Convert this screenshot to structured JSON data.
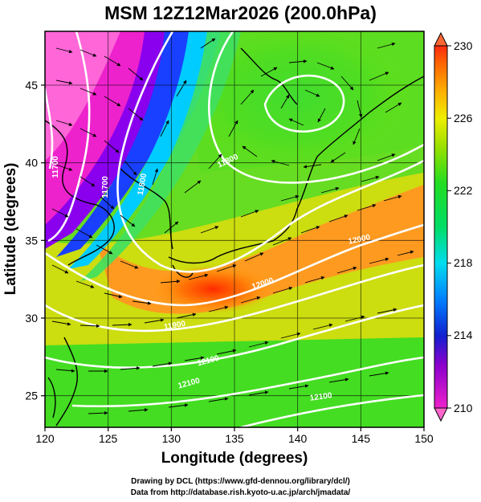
{
  "title": "MSM 12Z12Mar2026 (200.0hPa)",
  "map": {
    "lon_range": [
      120,
      150
    ],
    "lat_range": [
      22.5,
      48
    ],
    "x_ticks": [
      "120",
      "125",
      "130",
      "135",
      "140",
      "145",
      "150"
    ],
    "y_ticks": [
      "25",
      "30",
      "35",
      "40",
      "45"
    ],
    "xlabel": "Longitude (degrees)",
    "ylabel": "Latitude  (degrees)",
    "contour_labels": [
      "11700",
      "11700",
      "11800",
      "11800",
      "11900",
      "12000",
      "12000",
      "12100",
      "12100",
      "12100"
    ]
  },
  "colorbar": {
    "ticks": [
      "230",
      "226",
      "222",
      "218",
      "214",
      "210"
    ],
    "min": 210,
    "max": 230
  },
  "credits": {
    "line1": "Drawing by DCL (https://www.gfd-dennou.org/library/dcl/)",
    "line2": "Data from http://database.rish.kyoto-u.ac.jp/arch/jmadata/"
  }
}
